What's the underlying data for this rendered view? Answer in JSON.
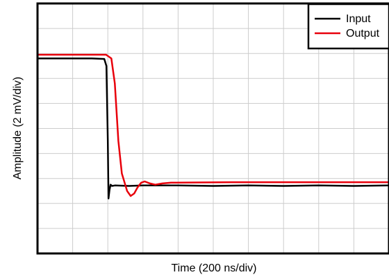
{
  "chart_data": {
    "type": "line",
    "xlabel": "Time (200 ns/div)",
    "ylabel": "Amplitude (2 mV/div)",
    "x_divisions": 10,
    "y_divisions": 10,
    "xlim": [
      0,
      10
    ],
    "ylim": [
      0,
      10
    ],
    "grid": true,
    "legend_placement": "top-right",
    "series": [
      {
        "name": "Input",
        "color": "#000000",
        "points": [
          [
            0,
            7.8
          ],
          [
            1.55,
            7.8
          ],
          [
            1.9,
            7.78
          ],
          [
            1.96,
            7.5
          ],
          [
            2.0,
            4.5
          ],
          [
            2.02,
            2.2
          ],
          [
            2.05,
            2.55
          ],
          [
            2.08,
            2.75
          ],
          [
            2.12,
            2.7
          ],
          [
            2.2,
            2.72
          ],
          [
            2.6,
            2.7
          ],
          [
            3.0,
            2.72
          ],
          [
            4.0,
            2.72
          ],
          [
            5.0,
            2.7
          ],
          [
            6.0,
            2.72
          ],
          [
            7.0,
            2.7
          ],
          [
            8.0,
            2.72
          ],
          [
            9.0,
            2.7
          ],
          [
            10.0,
            2.72
          ]
        ]
      },
      {
        "name": "Output",
        "color": "#e8000b",
        "points": [
          [
            0,
            7.95
          ],
          [
            1.5,
            7.95
          ],
          [
            1.95,
            7.95
          ],
          [
            2.1,
            7.8
          ],
          [
            2.2,
            6.8
          ],
          [
            2.3,
            4.5
          ],
          [
            2.4,
            3.2
          ],
          [
            2.55,
            2.5
          ],
          [
            2.65,
            2.3
          ],
          [
            2.75,
            2.4
          ],
          [
            2.85,
            2.65
          ],
          [
            2.95,
            2.83
          ],
          [
            3.05,
            2.88
          ],
          [
            3.2,
            2.8
          ],
          [
            3.35,
            2.75
          ],
          [
            3.55,
            2.8
          ],
          [
            3.8,
            2.83
          ],
          [
            4.5,
            2.84
          ],
          [
            5.5,
            2.85
          ],
          [
            6.5,
            2.85
          ],
          [
            7.5,
            2.85
          ],
          [
            8.5,
            2.85
          ],
          [
            10.0,
            2.85
          ]
        ]
      }
    ]
  }
}
